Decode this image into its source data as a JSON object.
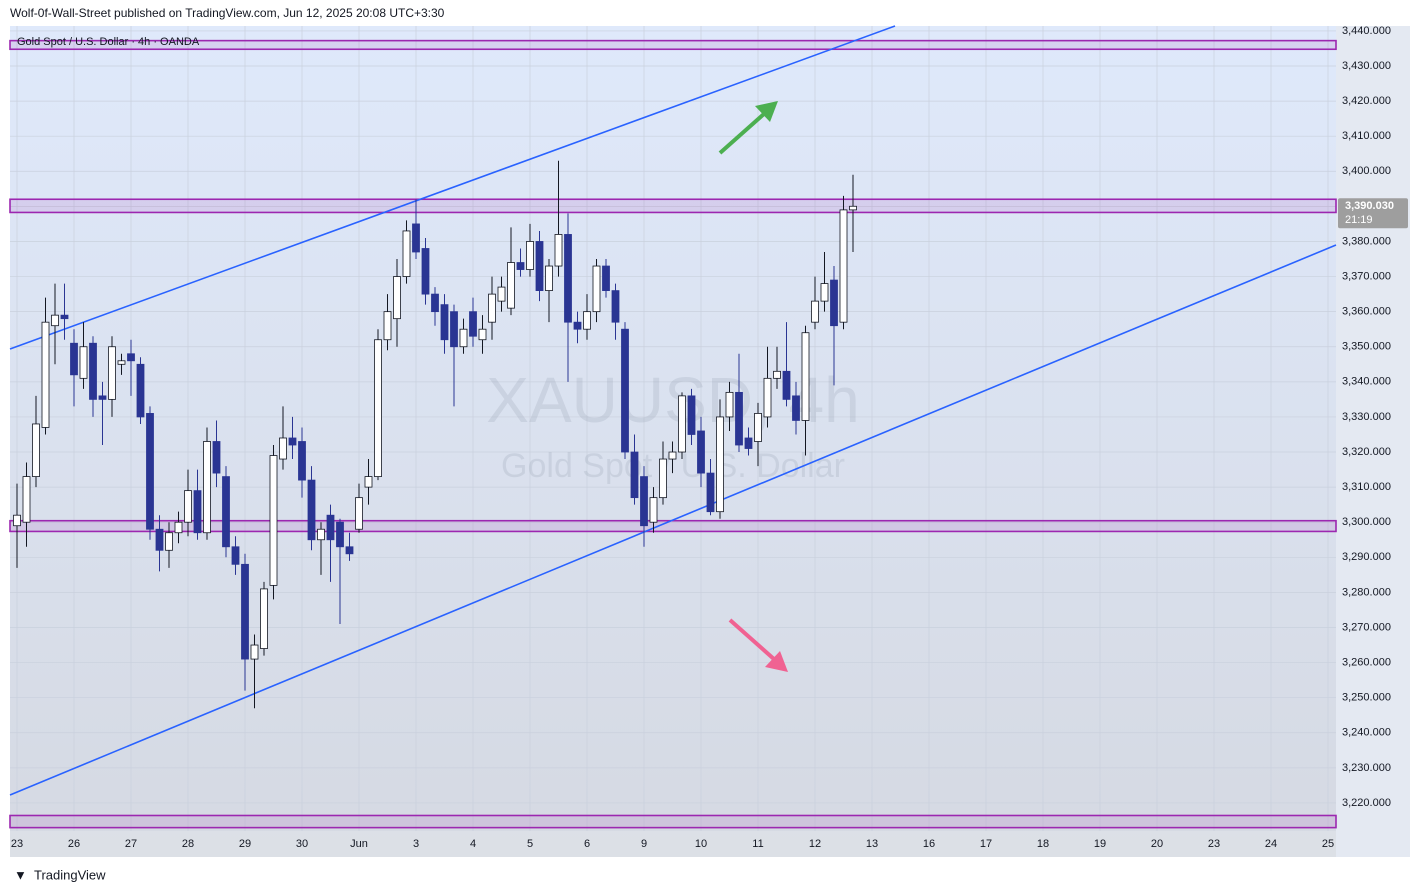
{
  "chart_data": {
    "type": "candlestick",
    "header": "Wolf-0f-Wall-Street published on TradingView.com, Jun 12, 2025 20:08 UTC+3:30",
    "symbol": "Gold Spot / U.S. Dollar · 4h · OANDA",
    "watermark": "XAUUSD, 4h",
    "watermark_subtitle": "Gold Spot / U.S. Dollar",
    "footer": "TradingView",
    "up_color": "#ffffff",
    "down_color": "#2a3593",
    "ylim": [
      3204.6,
      3441.4
    ],
    "yticks": [
      {
        "value": 3220,
        "label": "3,220.000"
      },
      {
        "value": 3230,
        "label": "3,230.000"
      },
      {
        "value": 3240,
        "label": "3,240.000"
      },
      {
        "value": 3250,
        "label": "3,250.000"
      },
      {
        "value": 3260,
        "label": "3,260.000"
      },
      {
        "value": 3270,
        "label": "3,270.000"
      },
      {
        "value": 3280,
        "label": "3,280.000"
      },
      {
        "value": 3290,
        "label": "3,290.000"
      },
      {
        "value": 3300,
        "label": "3,300.000"
      },
      {
        "value": 3310,
        "label": "3,310.000"
      },
      {
        "value": 3320,
        "label": "3,320.000"
      },
      {
        "value": 3330,
        "label": "3,330.000"
      },
      {
        "value": 3340,
        "label": "3,340.000"
      },
      {
        "value": 3350,
        "label": "3,350.000"
      },
      {
        "value": 3360,
        "label": "3,360.000"
      },
      {
        "value": 3370,
        "label": "3,370.000"
      },
      {
        "value": 3380,
        "label": "3,380.000"
      },
      {
        "value": 3390,
        "label": "3,390.000"
      },
      {
        "value": 3400,
        "label": "3,400.000"
      },
      {
        "value": 3410,
        "label": "3,410.000"
      },
      {
        "value": 3420,
        "label": "3,420.000"
      },
      {
        "value": 3430,
        "label": "3,430.000"
      },
      {
        "value": 3440,
        "label": "3,440.000"
      }
    ],
    "last_price": {
      "value": 3390.03,
      "label": "3,390.030"
    },
    "countdown": "21:19",
    "zones": [
      [
        3435.2,
        3436.8
      ],
      [
        3388.7,
        3391.6
      ],
      [
        3297.8,
        3300.0
      ],
      [
        3213.4,
        3216.0
      ]
    ],
    "zone_color": "#9c27b0",
    "days": [
      {
        "label": "23",
        "candles": [
          [
            3299,
            3311,
            3287,
            3302
          ],
          [
            3300,
            3317,
            3293,
            3313
          ],
          [
            3313,
            3336,
            3310,
            3328
          ],
          [
            3327,
            3364,
            3325,
            3357
          ],
          [
            3356,
            3368,
            3345,
            3359
          ],
          [
            3359,
            3368,
            3352,
            3358
          ]
        ]
      },
      {
        "label": "26",
        "candles": [
          [
            3351,
            3355,
            3333,
            3342
          ],
          [
            3341,
            3357,
            3338,
            3350
          ],
          [
            3351,
            3353,
            3330,
            3335
          ],
          [
            3336,
            3340,
            3322,
            3335
          ],
          [
            3335,
            3353,
            3330,
            3350
          ],
          [
            3345,
            3348,
            3342,
            3346
          ]
        ]
      },
      {
        "label": "27",
        "candles": [
          [
            3348,
            3352,
            3336,
            3346
          ],
          [
            3345,
            3347,
            3328,
            3330
          ],
          [
            3331,
            3333,
            3295,
            3298
          ],
          [
            3298,
            3302,
            3286,
            3292
          ],
          [
            3292,
            3300,
            3287,
            3297
          ],
          [
            3297,
            3303,
            3294,
            3300
          ]
        ]
      },
      {
        "label": "28",
        "candles": [
          [
            3300,
            3315,
            3296,
            3309
          ],
          [
            3309,
            3315,
            3295,
            3297
          ],
          [
            3297,
            3327,
            3295,
            3323
          ],
          [
            3323,
            3329,
            3310,
            3314
          ],
          [
            3313,
            3316,
            3290,
            3293
          ],
          [
            3293,
            3296,
            3285,
            3288
          ]
        ]
      },
      {
        "label": "29",
        "candles": [
          [
            3288,
            3291,
            3252,
            3261
          ],
          [
            3261,
            3268,
            3247,
            3265
          ],
          [
            3264,
            3283,
            3262,
            3281
          ],
          [
            3282,
            3322,
            3278,
            3319
          ],
          [
            3318,
            3333,
            3315,
            3324
          ],
          [
            3324,
            3330,
            3318,
            3322
          ]
        ]
      },
      {
        "label": "30",
        "candles": [
          [
            3323,
            3327,
            3307,
            3312
          ],
          [
            3312,
            3316,
            3292,
            3295
          ],
          [
            3295,
            3300,
            3285,
            3298
          ],
          [
            3302,
            3305,
            3283,
            3295
          ],
          [
            3300,
            3301,
            3271,
            3293
          ],
          [
            3293,
            3297,
            3289,
            3291
          ]
        ]
      },
      {
        "label": "Jun",
        "candles": [
          [
            3298,
            3311,
            3297,
            3307
          ],
          [
            3310,
            3318,
            3305,
            3313
          ],
          [
            3313,
            3355,
            3312,
            3352
          ],
          [
            3352,
            3365,
            3349,
            3360
          ],
          [
            3358,
            3375,
            3350,
            3370
          ],
          [
            3370,
            3386,
            3368,
            3383
          ]
        ]
      },
      {
        "label": "3",
        "candles": [
          [
            3385,
            3392,
            3375,
            3377
          ],
          [
            3378,
            3381,
            3362,
            3365
          ],
          [
            3365,
            3367,
            3356,
            3360
          ],
          [
            3362,
            3365,
            3348,
            3352
          ],
          [
            3360,
            3362,
            3333,
            3350
          ],
          [
            3350,
            3358,
            3348,
            3355
          ]
        ]
      },
      {
        "label": "4",
        "candles": [
          [
            3360,
            3364,
            3350,
            3353
          ],
          [
            3352,
            3359,
            3348,
            3355
          ],
          [
            3357,
            3370,
            3352,
            3365
          ],
          [
            3363,
            3370,
            3360,
            3367
          ],
          [
            3361,
            3384,
            3359,
            3374
          ],
          [
            3374,
            3378,
            3370,
            3372
          ]
        ]
      },
      {
        "label": "5",
        "candles": [
          [
            3372,
            3385,
            3370,
            3380
          ],
          [
            3380,
            3383,
            3363,
            3366
          ],
          [
            3366,
            3375,
            3357,
            3373
          ],
          [
            3373,
            3403,
            3370,
            3382
          ],
          [
            3382,
            3388,
            3340,
            3357
          ],
          [
            3357,
            3360,
            3351,
            3355
          ]
        ]
      },
      {
        "label": "6",
        "candles": [
          [
            3355,
            3365,
            3352,
            3360
          ],
          [
            3360,
            3375,
            3357,
            3373
          ],
          [
            3373,
            3375,
            3364,
            3366
          ],
          [
            3366,
            3368,
            3352,
            3357
          ],
          [
            3355,
            3357,
            3318,
            3320
          ],
          [
            3320,
            3325,
            3305,
            3307
          ]
        ]
      },
      {
        "label": "9",
        "candles": [
          [
            3313,
            3316,
            3293,
            3299
          ],
          [
            3300,
            3310,
            3297,
            3307
          ],
          [
            3307,
            3323,
            3305,
            3318
          ],
          [
            3318,
            3323,
            3314,
            3320
          ],
          [
            3320,
            3337,
            3318,
            3336
          ],
          [
            3336,
            3338,
            3322,
            3325
          ]
        ]
      },
      {
        "label": "10",
        "candles": [
          [
            3326,
            3330,
            3310,
            3314
          ],
          [
            3314,
            3318,
            3302,
            3303
          ],
          [
            3303,
            3335,
            3301,
            3330
          ],
          [
            3330,
            3340,
            3326,
            3337
          ],
          [
            3337,
            3348,
            3320,
            3322
          ],
          [
            3324,
            3327,
            3319,
            3321
          ]
        ]
      },
      {
        "label": "11",
        "candles": [
          [
            3323,
            3334,
            3316,
            3331
          ],
          [
            3330,
            3350,
            3327,
            3341
          ],
          [
            3341,
            3350,
            3338,
            3343
          ],
          [
            3343,
            3357,
            3333,
            3335
          ],
          [
            3336,
            3340,
            3325,
            3329
          ],
          [
            3329,
            3356,
            3319,
            3354
          ]
        ]
      },
      {
        "label": "12",
        "candles": [
          [
            3357,
            3370,
            3355,
            3363
          ],
          [
            3363,
            3377,
            3360,
            3368
          ],
          [
            3369,
            3373,
            3339,
            3356
          ],
          [
            3357,
            3393,
            3355,
            3389
          ],
          [
            3389,
            3399,
            3377,
            3390.03
          ]
        ]
      },
      {
        "label": "13",
        "candles": []
      },
      {
        "label": "16",
        "candles": []
      },
      {
        "label": "17",
        "candles": []
      },
      {
        "label": "18",
        "candles": []
      },
      {
        "label": "19",
        "candles": []
      },
      {
        "label": "20",
        "candles": []
      },
      {
        "label": "23",
        "candles": []
      },
      {
        "label": "24",
        "candles": []
      },
      {
        "label": "25",
        "candles": []
      }
    ]
  }
}
